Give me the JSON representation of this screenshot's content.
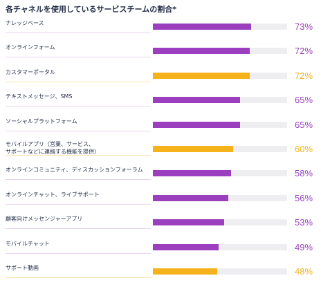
{
  "chart_data": {
    "type": "bar",
    "title": "各チャネルを使用しているサービスチームの割合*",
    "xlim": [
      0,
      100
    ],
    "categories": [
      "ナレッジベース",
      "オンラインフォーム",
      "カスタマーポータル",
      "テキストメッセージ、SMS",
      "ソーシャルプラットフォーム",
      "モバイルアプリ（営業、サービス、\nサポートなどに連絡する機能を提供）",
      "オンラインコミュニティ、ディスカッションフォーラム",
      "オンラインチャット、ライブサポート",
      "顧客向けメッセンジャーアプリ",
      "モバイルチャット",
      "サポート動画"
    ],
    "values": [
      73,
      72,
      72,
      65,
      65,
      60,
      58,
      56,
      53,
      49,
      48
    ],
    "value_labels": [
      "73%",
      "72%",
      "72%",
      "65%",
      "65%",
      "60%",
      "58%",
      "56%",
      "53%",
      "49%",
      "48%"
    ],
    "highlight": [
      false,
      false,
      true,
      false,
      false,
      true,
      false,
      false,
      false,
      false,
      true
    ],
    "colors": {
      "standard": "#9b3fbf",
      "highlight": "#f5b21b",
      "track": "#eeeef1",
      "standard_underline": "#e9d3f0",
      "highlight_underline": "#fbe2a8"
    }
  }
}
